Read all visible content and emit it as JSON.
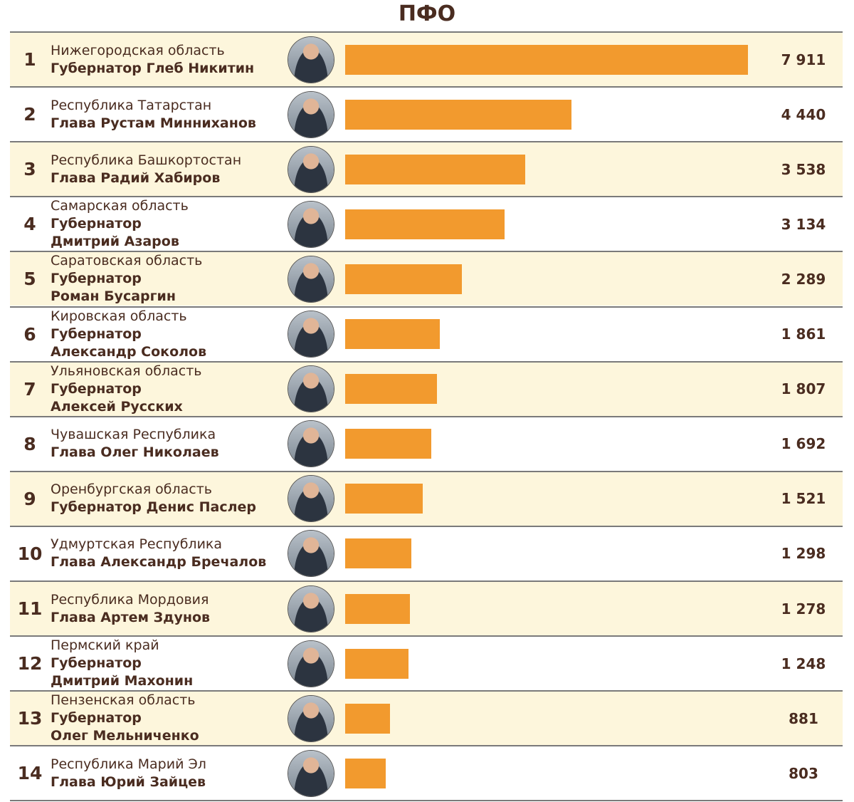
{
  "title": "ПФО",
  "colors": {
    "bar": "#f29a2e",
    "alt_row": "#fdf6dc",
    "text": "#4a2c20",
    "rule": "#7a7a7a"
  },
  "chart_data": {
    "type": "bar",
    "orientation": "horizontal",
    "title": "ПФО",
    "xlim": [
      0,
      7911
    ],
    "grid": false,
    "rows": [
      {
        "rank": "1",
        "region": "Нижегородская область",
        "person_lines": [
          "Губернатор Глеб Никитин"
        ],
        "value": 7911,
        "value_label": "7 911"
      },
      {
        "rank": "2",
        "region": "Республика Татарстан",
        "person_lines": [
          "Глава Рустам Минниханов"
        ],
        "value": 4440,
        "value_label": "4 440"
      },
      {
        "rank": "3",
        "region": "Республика Башкортостан",
        "person_lines": [
          "Глава Радий Хабиров"
        ],
        "value": 3538,
        "value_label": "3 538"
      },
      {
        "rank": "4",
        "region": "Самарская область",
        "person_lines": [
          "Губернатор",
          "Дмитрий Азаров"
        ],
        "value": 3134,
        "value_label": "3 134"
      },
      {
        "rank": "5",
        "region": "Саратовская область",
        "person_lines": [
          "Губернатор",
          "Роман Бусаргин"
        ],
        "value": 2289,
        "value_label": "2 289"
      },
      {
        "rank": "6",
        "region": "Кировская область",
        "person_lines": [
          "Губернатор",
          "Александр Соколов"
        ],
        "value": 1861,
        "value_label": "1 861"
      },
      {
        "rank": "7",
        "region": "Ульяновская область",
        "person_lines": [
          "Губернатор",
          "Алексей Русских"
        ],
        "value": 1807,
        "value_label": "1 807"
      },
      {
        "rank": "8",
        "region": "Чувашская Республика",
        "person_lines": [
          "Глава Олег Николаев"
        ],
        "value": 1692,
        "value_label": "1 692"
      },
      {
        "rank": "9",
        "region": "Оренбургская область",
        "person_lines": [
          "Губернатор Денис Паслер"
        ],
        "value": 1521,
        "value_label": "1 521"
      },
      {
        "rank": "10",
        "region": "Удмуртская Республика",
        "person_lines": [
          "Глава Александр Бречалов"
        ],
        "value": 1298,
        "value_label": "1 298"
      },
      {
        "rank": "11",
        "region": "Республика Мордовия",
        "person_lines": [
          "Глава Артем Здунов"
        ],
        "value": 1278,
        "value_label": "1 278"
      },
      {
        "rank": "12",
        "region": "Пермский край",
        "person_lines": [
          "Губернатор",
          "Дмитрий Махонин"
        ],
        "value": 1248,
        "value_label": "1 248"
      },
      {
        "rank": "13",
        "region": "Пензенская область",
        "person_lines": [
          "Губернатор",
          "Олег Мельниченко"
        ],
        "value": 881,
        "value_label": "881"
      },
      {
        "rank": "14",
        "region": "Республика Марий Эл",
        "person_lines": [
          "Глава Юрий Зайцев"
        ],
        "value": 803,
        "value_label": "803"
      }
    ]
  }
}
